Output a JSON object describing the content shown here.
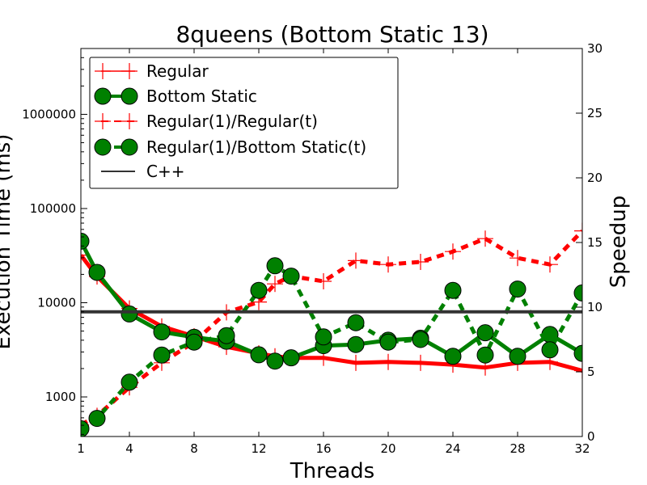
{
  "chart_data": {
    "type": "line",
    "title": "8queens (Bottom Static 13)",
    "xlabel": "Threads",
    "ylabel_left": "Execution Time (ms)",
    "ylabel_right": "Speedup",
    "x_ticks": [
      "1",
      "4",
      "8",
      "12",
      "16",
      "20",
      "24",
      "28",
      "32"
    ],
    "y_left_ticks": [
      "1000",
      "10000",
      "100000",
      "1000000"
    ],
    "y_right_ticks": [
      "0",
      "5",
      "10",
      "15",
      "20",
      "25",
      "30"
    ],
    "xlim": [
      1,
      32
    ],
    "y_left_scale": "log",
    "y_left_lim": [
      380,
      5000000
    ],
    "y_right_lim": [
      0,
      30
    ],
    "grid": false,
    "legend_position": "upper-left",
    "series": [
      {
        "name": "Regular",
        "axis": "left",
        "color": "#ff0000",
        "style": "solid",
        "marker": "plus",
        "x": [
          1,
          2,
          4,
          6,
          8,
          10,
          12,
          13,
          14,
          16,
          18,
          20,
          22,
          24,
          26,
          28,
          30,
          32
        ],
        "y": [
          32000,
          19000,
          8700,
          5600,
          4400,
          3400,
          2900,
          2700,
          2600,
          2600,
          2300,
          2350,
          2300,
          2200,
          2050,
          2300,
          2350,
          1900
        ]
      },
      {
        "name": "Bottom Static",
        "axis": "left",
        "color": "#008000",
        "style": "solid",
        "marker": "circle",
        "x": [
          1,
          2,
          4,
          6,
          8,
          10,
          12,
          13,
          14,
          16,
          18,
          20,
          22,
          24,
          26,
          28,
          30,
          32
        ],
        "y": [
          45000,
          21000,
          7600,
          4900,
          4300,
          3900,
          2800,
          2400,
          2600,
          3500,
          3600,
          4000,
          4200,
          2700,
          4800,
          2700,
          4600,
          2900
        ]
      },
      {
        "name": "Regular(1)/Regular(t)",
        "axis": "right",
        "color": "#ff0000",
        "style": "dashed",
        "marker": "plus",
        "x": [
          1,
          2,
          4,
          6,
          8,
          10,
          12,
          13,
          14,
          16,
          18,
          20,
          22,
          24,
          26,
          28,
          30,
          32
        ],
        "y": [
          0.9,
          1.6,
          3.8,
          5.7,
          7.3,
          9.6,
          10.4,
          11.8,
          12.4,
          12.0,
          13.6,
          13.3,
          13.5,
          14.3,
          15.3,
          13.8,
          13.3,
          15.9
        ]
      },
      {
        "name": "Regular(1)/Bottom Static(t)",
        "axis": "right",
        "color": "#008000",
        "style": "dashed",
        "marker": "circle",
        "x": [
          1,
          2,
          4,
          6,
          8,
          10,
          12,
          13,
          14,
          16,
          18,
          20,
          22,
          24,
          26,
          28,
          30,
          32
        ],
        "y": [
          0.6,
          1.4,
          4.2,
          6.3,
          7.3,
          7.8,
          11.3,
          13.2,
          12.4,
          7.7,
          8.8,
          7.3,
          7.5,
          11.3,
          6.3,
          11.4,
          6.7,
          11.1
        ]
      },
      {
        "name": "C++",
        "axis": "left",
        "color": "#333333",
        "style": "solid",
        "marker": "none",
        "x": [
          1,
          32
        ],
        "y": [
          8000,
          8000
        ]
      }
    ]
  }
}
